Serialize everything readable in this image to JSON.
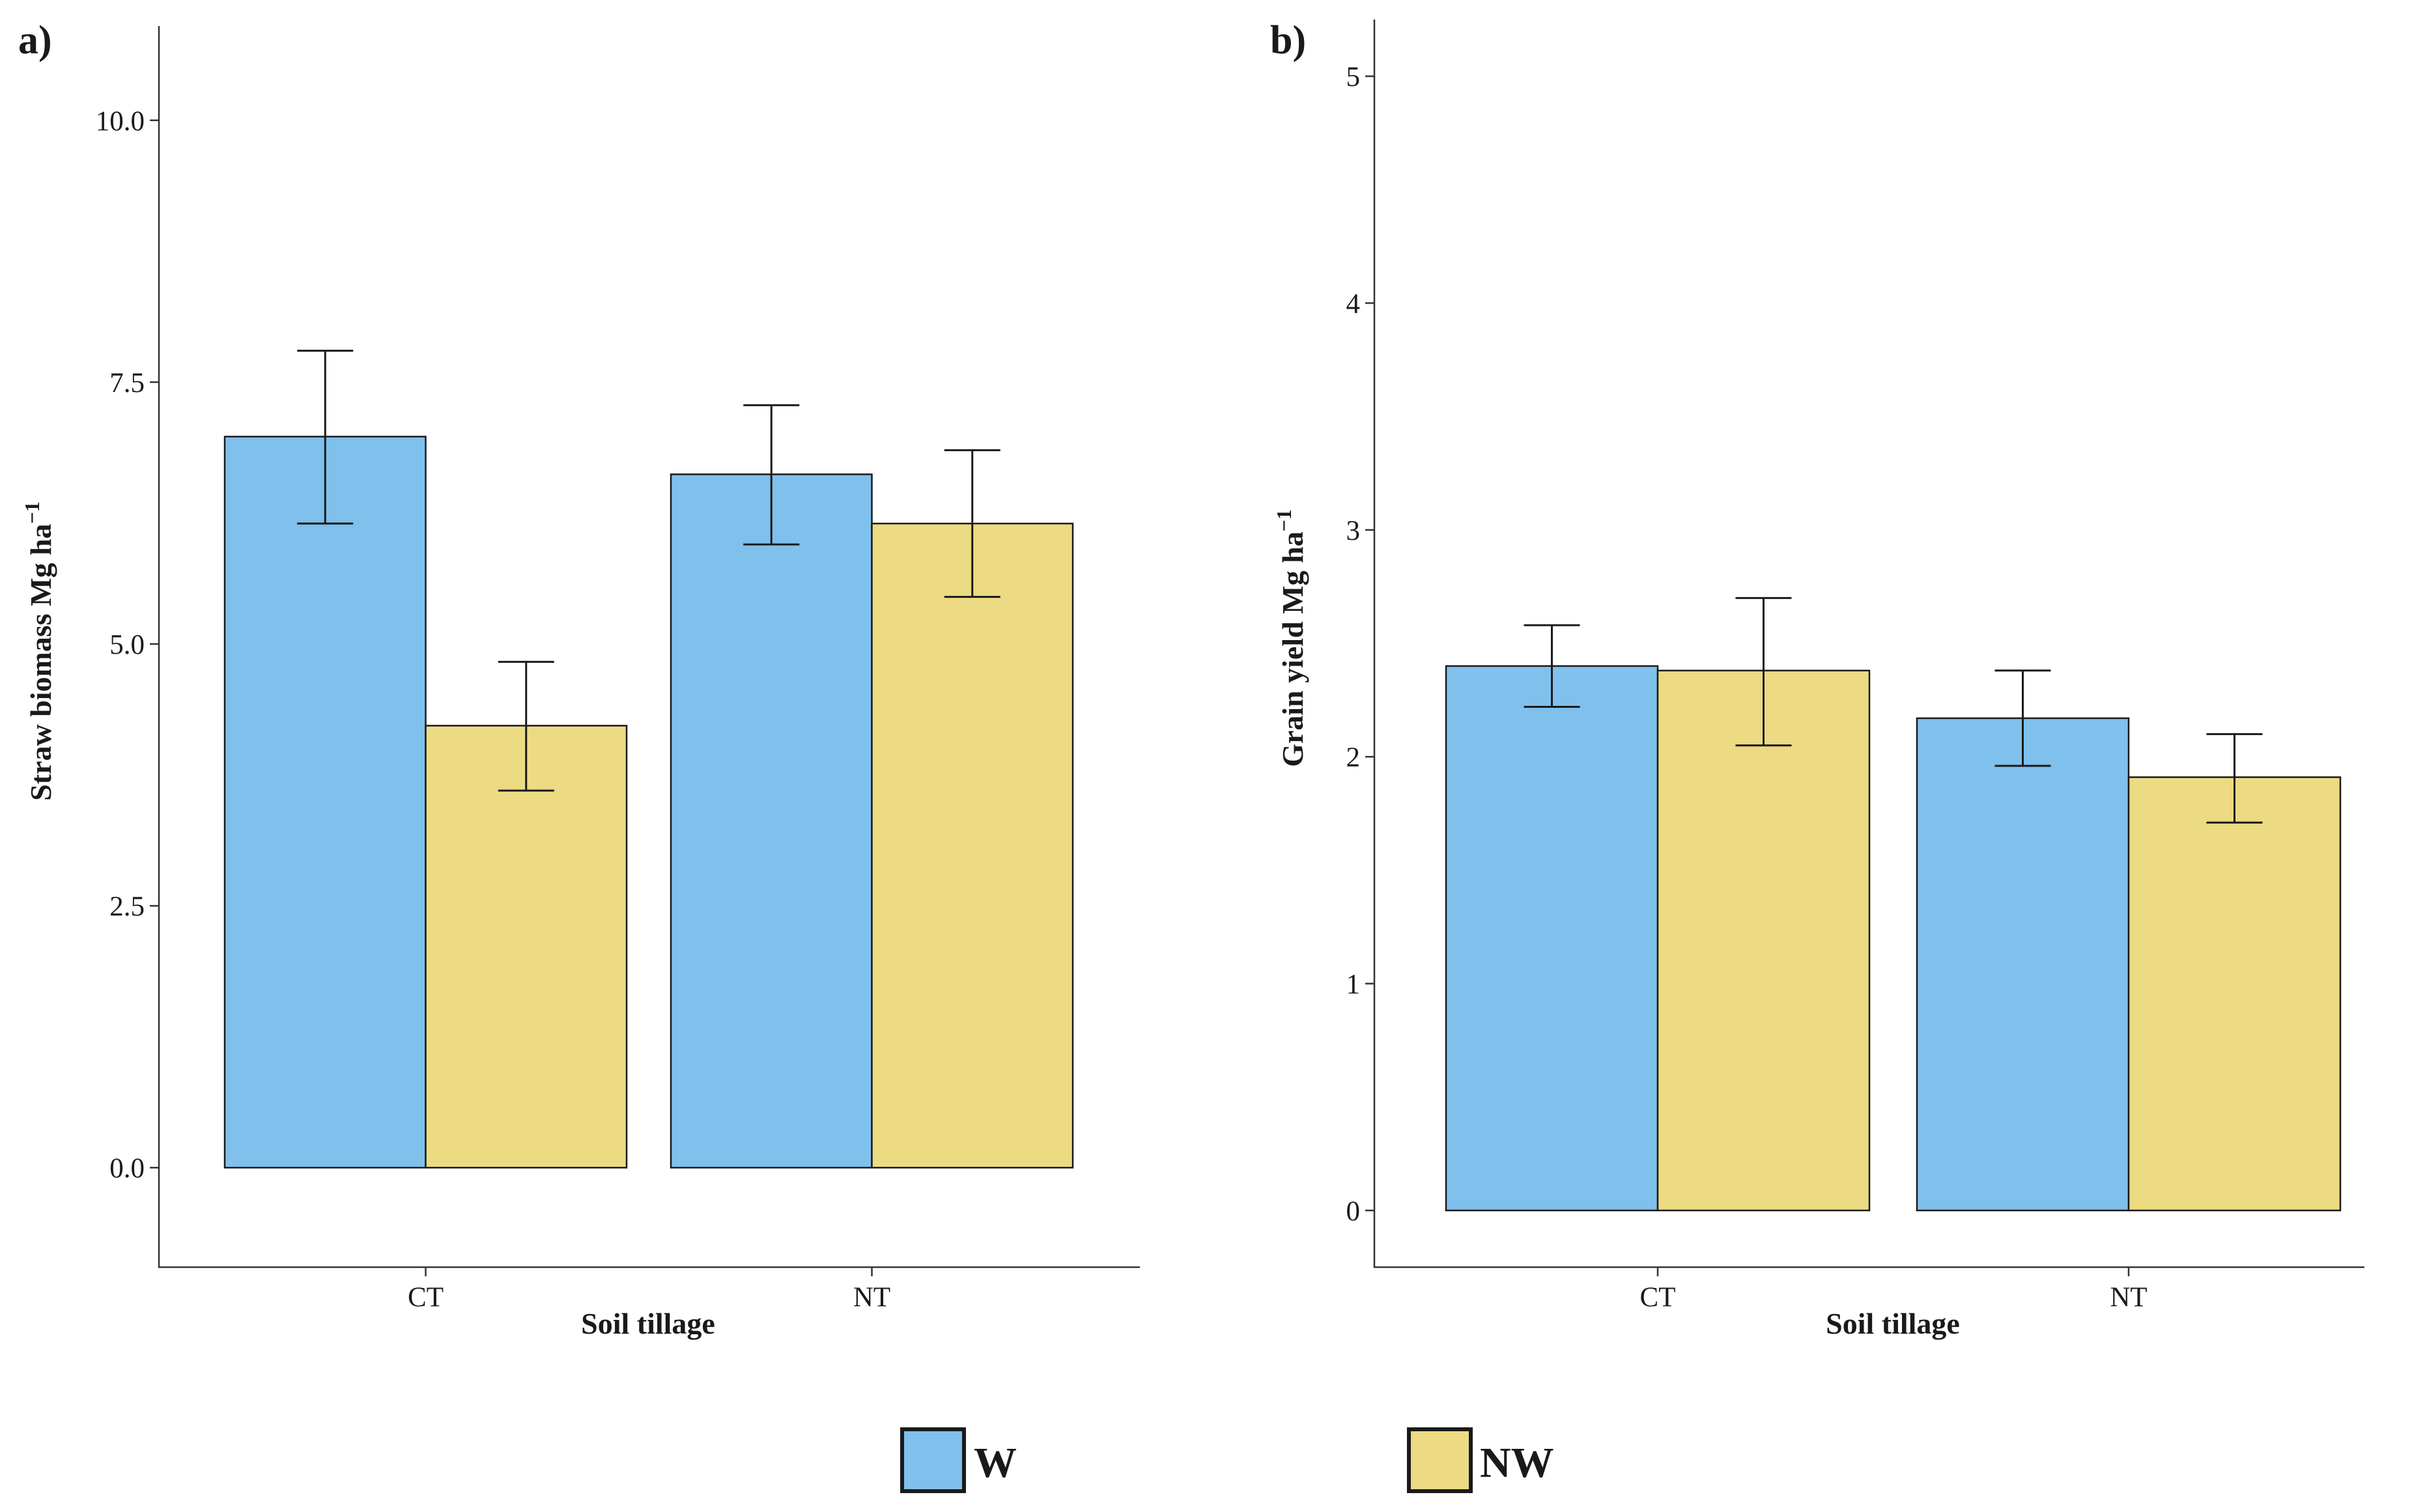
{
  "colors": {
    "W": "#7fc0ec",
    "NW": "#ecdb82"
  },
  "legend": {
    "items": [
      {
        "key": "W",
        "label": "W"
      },
      {
        "key": "NW",
        "label": "NW"
      }
    ]
  },
  "chart_data": [
    {
      "panel": "a)",
      "type": "bar",
      "xlabel": "Soil tillage",
      "ylabel_main": "Straw biomass Mg ha",
      "ylabel_sup": "−1",
      "categories": [
        "CT",
        "NT"
      ],
      "ylim": [
        -0.95,
        10.9
      ],
      "yticks": [
        0,
        2.5,
        5,
        7.5,
        10
      ],
      "ytick_labels": [
        "0.0",
        "2.5",
        "5.0",
        "7.5",
        "10.0"
      ],
      "series": [
        {
          "name": "W",
          "values": [
            6.98,
            6.62
          ],
          "err_low": [
            6.15,
            5.95
          ],
          "err_high": [
            7.8,
            7.28
          ]
        },
        {
          "name": "NW",
          "values": [
            4.22,
            6.15
          ],
          "err_low": [
            3.6,
            5.45
          ],
          "err_high": [
            4.83,
            6.85
          ]
        }
      ]
    },
    {
      "panel": "b)",
      "type": "bar",
      "xlabel": "Soil tillage",
      "ylabel_main": "Grain yield Mg ha",
      "ylabel_sup": "−1",
      "categories": [
        "CT",
        "NT"
      ],
      "ylim": [
        -0.25,
        5.25
      ],
      "yticks": [
        0,
        1,
        2,
        3,
        4,
        5
      ],
      "ytick_labels": [
        "0",
        "1",
        "2",
        "3",
        "4",
        "5"
      ],
      "series": [
        {
          "name": "W",
          "values": [
            2.4,
            2.17
          ],
          "err_low": [
            2.22,
            1.96
          ],
          "err_high": [
            2.58,
            2.38
          ]
        },
        {
          "name": "NW",
          "values": [
            2.38,
            1.91
          ],
          "err_low": [
            2.05,
            1.71
          ],
          "err_high": [
            2.7,
            2.1
          ]
        }
      ]
    }
  ]
}
